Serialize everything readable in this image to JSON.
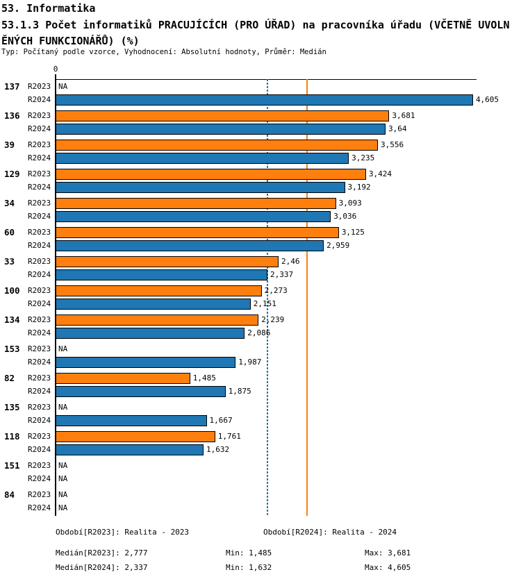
{
  "header": {
    "title": "53. Informatika",
    "subtitle_line1": "53.1.3 Počet informatiků PRACUJÍCÍCH (PRO ÚŘAD) na pracovníka úřadu (VČETNĚ UVOLN",
    "subtitle_line2": "ĚNÝCH FUNKCIONÁŘŮ) (%)",
    "meta": "Typ: Počítaný podle vzorce, Vyhodnocení: Absolutní hodnoty, Průměr: Medián"
  },
  "chart_data": {
    "type": "bar",
    "orientation": "horizontal",
    "title": "53.1.3 Počet informatiků PRACUJÍCÍCH (PRO ÚŘAD) na pracovníka úřadu (VČETNĚ UVOLNĚNÝCH FUNKCIONÁŘŮ) (%)",
    "axis_zero_label": "0",
    "xlim": [
      0,
      4.605
    ],
    "grid": false,
    "legend_position": "bottom",
    "series_names": [
      "R2023",
      "R2024"
    ],
    "colors": {
      "R2023": "#FF7F0E",
      "R2024": "#1F77B4"
    },
    "categories": [
      "137",
      "136",
      "39",
      "129",
      "34",
      "60",
      "33",
      "100",
      "134",
      "153",
      "82",
      "135",
      "118",
      "151",
      "84"
    ],
    "rows": [
      {
        "id": "137",
        "r2023": null,
        "r2023_label": "NA",
        "r2024": 4.605,
        "r2024_label": "4,605"
      },
      {
        "id": "136",
        "r2023": 3.681,
        "r2023_label": "3,681",
        "r2024": 3.64,
        "r2024_label": "3,64"
      },
      {
        "id": "39",
        "r2023": 3.556,
        "r2023_label": "3,556",
        "r2024": 3.235,
        "r2024_label": "3,235"
      },
      {
        "id": "129",
        "r2023": 3.424,
        "r2023_label": "3,424",
        "r2024": 3.192,
        "r2024_label": "3,192"
      },
      {
        "id": "34",
        "r2023": 3.093,
        "r2023_label": "3,093",
        "r2024": 3.036,
        "r2024_label": "3,036"
      },
      {
        "id": "60",
        "r2023": 3.125,
        "r2023_label": "3,125",
        "r2024": 2.959,
        "r2024_label": "2,959"
      },
      {
        "id": "33",
        "r2023": 2.46,
        "r2023_label": "2,46",
        "r2024": 2.337,
        "r2024_label": "2,337"
      },
      {
        "id": "100",
        "r2023": 2.273,
        "r2023_label": "2,273",
        "r2024": 2.151,
        "r2024_label": "2,151"
      },
      {
        "id": "134",
        "r2023": 2.239,
        "r2023_label": "2,239",
        "r2024": 2.086,
        "r2024_label": "2,086"
      },
      {
        "id": "153",
        "r2023": null,
        "r2023_label": "NA",
        "r2024": 1.987,
        "r2024_label": "1,987"
      },
      {
        "id": "82",
        "r2023": 1.485,
        "r2023_label": "1,485",
        "r2024": 1.875,
        "r2024_label": "1,875"
      },
      {
        "id": "135",
        "r2023": null,
        "r2023_label": "NA",
        "r2024": 1.667,
        "r2024_label": "1,667"
      },
      {
        "id": "118",
        "r2023": 1.761,
        "r2023_label": "1,761",
        "r2024": 1.632,
        "r2024_label": "1,632"
      },
      {
        "id": "151",
        "r2023": null,
        "r2023_label": "NA",
        "r2024": null,
        "r2024_label": "NA"
      },
      {
        "id": "84",
        "r2023": null,
        "r2023_label": "NA",
        "r2024": null,
        "r2024_label": "NA"
      }
    ],
    "median_lines": [
      {
        "name": "Medián[R2023]",
        "value": 2.777,
        "color": "#FF7F0E",
        "style": "solid"
      },
      {
        "name": "Medián[R2024]",
        "value": 2.337,
        "color": "#1F77B4",
        "style": "dashed"
      }
    ]
  },
  "footer": {
    "period_r2023": "Období[R2023]: Realita - 2023",
    "period_r2024": "Období[R2024]: Realita - 2024",
    "stats": [
      {
        "median": "Medián[R2023]: 2,777",
        "min": "Min: 1,485",
        "max": "Max: 3,681"
      },
      {
        "median": "Medián[R2024]: 2,337",
        "min": "Min: 1,632",
        "max": "Max: 4,605"
      }
    ]
  }
}
